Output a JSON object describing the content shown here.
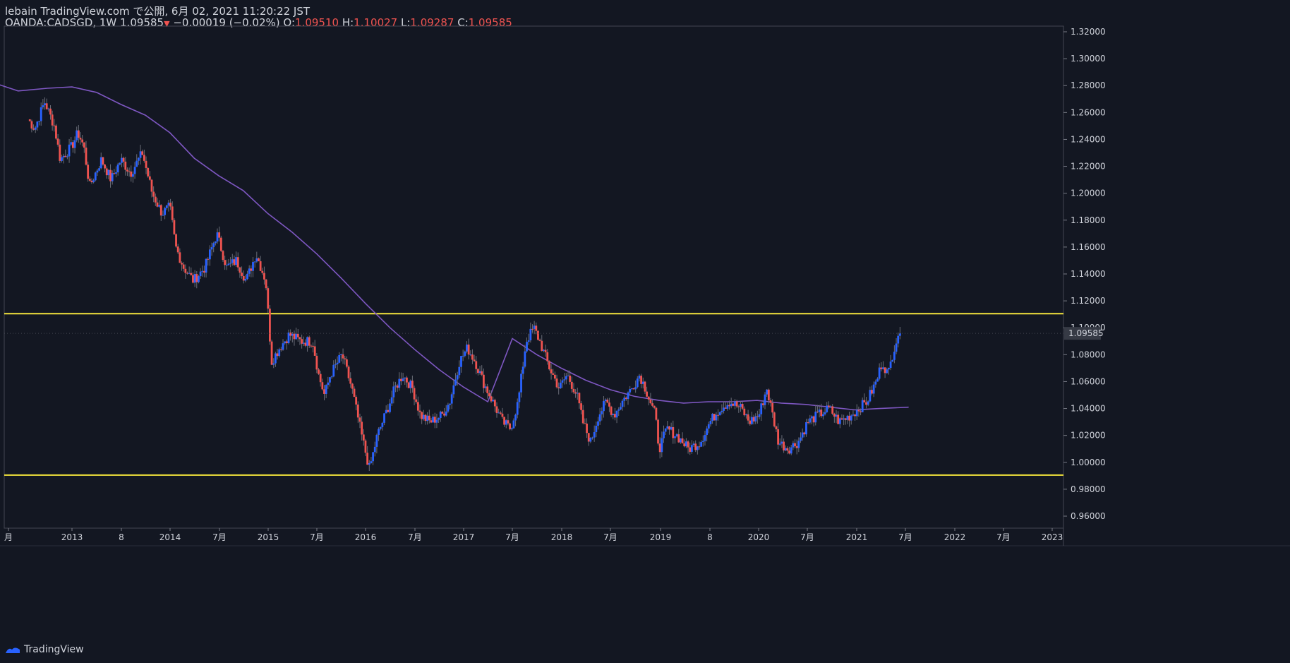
{
  "header": {
    "publisher": "lebain TradingView.com で公開, 6月 02, 2021 11:20:22 JST",
    "symbol": "OANDA:CADSGD, 1W",
    "last": "1.09585",
    "change": "−0.00019 (−0.02%)",
    "o_label": "O:",
    "o_value": "1.09510",
    "h_label": "H:",
    "h_value": "1.10027",
    "l_label": "L:",
    "l_value": "1.09287",
    "c_label": "C:",
    "c_value": "1.09585"
  },
  "footer": {
    "brand": "TradingView"
  },
  "colors": {
    "background": "#131722",
    "up": "#2962ff",
    "down": "#ef5350",
    "ma": "#7e57c2",
    "level": "#f5e63c",
    "grid": "#2a2e39"
  },
  "chart_data": {
    "type": "candlestick",
    "timeframe": "1W",
    "x_tick_labels": [
      "月",
      "2013",
      "8",
      "2014",
      "7月",
      "2015",
      "7月",
      "2016",
      "7月",
      "2017",
      "7月",
      "2018",
      "7月",
      "2019",
      "8",
      "2020",
      "7月",
      "2021",
      "7月",
      "2022",
      "7月",
      "2023"
    ],
    "y_tick_labels": [
      "1.32000",
      "1.30000",
      "1.28000",
      "1.26000",
      "1.24000",
      "1.22000",
      "1.20000",
      "1.18000",
      "1.16000",
      "1.14000",
      "1.12000",
      "1.10000",
      "1.08000",
      "1.06000",
      "1.04000",
      "1.02000",
      "1.00000",
      "0.98000",
      "0.96000"
    ],
    "ylim": [
      0.95,
      1.325
    ],
    "last_price_label": "1.09585",
    "last_price": 1.09585,
    "horizontal_levels": [
      1.1105,
      0.9905
    ],
    "close_path": [
      [
        2012.55,
        1.255
      ],
      [
        2012.62,
        1.248
      ],
      [
        2012.72,
        1.268
      ],
      [
        2012.82,
        1.25
      ],
      [
        2012.88,
        1.225
      ],
      [
        2013.0,
        1.235
      ],
      [
        2013.06,
        1.245
      ],
      [
        2013.12,
        1.235
      ],
      [
        2013.18,
        1.205
      ],
      [
        2013.3,
        1.225
      ],
      [
        2013.4,
        1.21
      ],
      [
        2013.5,
        1.225
      ],
      [
        2013.6,
        1.215
      ],
      [
        2013.72,
        1.23
      ],
      [
        2013.82,
        1.2
      ],
      [
        2013.92,
        1.185
      ],
      [
        2014.0,
        1.19
      ],
      [
        2014.06,
        1.16
      ],
      [
        2014.14,
        1.145
      ],
      [
        2014.24,
        1.135
      ],
      [
        2014.36,
        1.145
      ],
      [
        2014.48,
        1.17
      ],
      [
        2014.58,
        1.145
      ],
      [
        2014.68,
        1.15
      ],
      [
        2014.78,
        1.135
      ],
      [
        2014.88,
        1.155
      ],
      [
        2014.98,
        1.135
      ],
      [
        2015.04,
        1.075
      ],
      [
        2015.12,
        1.085
      ],
      [
        2015.22,
        1.095
      ],
      [
        2015.34,
        1.09
      ],
      [
        2015.46,
        1.09
      ],
      [
        2015.52,
        1.065
      ],
      [
        2015.58,
        1.05
      ],
      [
        2015.64,
        1.065
      ],
      [
        2015.76,
        1.08
      ],
      [
        2015.86,
        1.055
      ],
      [
        2015.96,
        1.02
      ],
      [
        2016.04,
        0.995
      ],
      [
        2016.12,
        1.02
      ],
      [
        2016.2,
        1.035
      ],
      [
        2016.3,
        1.055
      ],
      [
        2016.38,
        1.065
      ],
      [
        2016.48,
        1.055
      ],
      [
        2016.56,
        1.035
      ],
      [
        2016.66,
        1.03
      ],
      [
        2016.78,
        1.035
      ],
      [
        2016.86,
        1.045
      ],
      [
        2016.96,
        1.075
      ],
      [
        2017.04,
        1.085
      ],
      [
        2017.12,
        1.075
      ],
      [
        2017.2,
        1.06
      ],
      [
        2017.3,
        1.045
      ],
      [
        2017.4,
        1.03
      ],
      [
        2017.48,
        1.025
      ],
      [
        2017.56,
        1.045
      ],
      [
        2017.64,
        1.09
      ],
      [
        2017.72,
        1.1
      ],
      [
        2017.78,
        1.09
      ],
      [
        2017.88,
        1.07
      ],
      [
        2017.98,
        1.055
      ],
      [
        2018.06,
        1.065
      ],
      [
        2018.16,
        1.05
      ],
      [
        2018.22,
        1.03
      ],
      [
        2018.3,
        1.015
      ],
      [
        2018.38,
        1.035
      ],
      [
        2018.46,
        1.045
      ],
      [
        2018.54,
        1.035
      ],
      [
        2018.62,
        1.045
      ],
      [
        2018.72,
        1.055
      ],
      [
        2018.8,
        1.065
      ],
      [
        2018.86,
        1.055
      ],
      [
        2018.96,
        1.035
      ],
      [
        2019.0,
        1.01
      ],
      [
        2019.08,
        1.025
      ],
      [
        2019.18,
        1.02
      ],
      [
        2019.3,
        1.01
      ],
      [
        2019.42,
        1.015
      ],
      [
        2019.52,
        1.03
      ],
      [
        2019.62,
        1.04
      ],
      [
        2019.72,
        1.045
      ],
      [
        2019.84,
        1.04
      ],
      [
        2019.92,
        1.03
      ],
      [
        2020.02,
        1.035
      ],
      [
        2020.1,
        1.055
      ],
      [
        2020.16,
        1.035
      ],
      [
        2020.22,
        1.015
      ],
      [
        2020.32,
        1.01
      ],
      [
        2020.42,
        1.015
      ],
      [
        2020.52,
        1.03
      ],
      [
        2020.62,
        1.035
      ],
      [
        2020.74,
        1.04
      ],
      [
        2020.84,
        1.03
      ],
      [
        2020.96,
        1.035
      ],
      [
        2021.04,
        1.04
      ],
      [
        2021.12,
        1.045
      ],
      [
        2021.22,
        1.06
      ],
      [
        2021.28,
        1.075
      ],
      [
        2021.34,
        1.065
      ],
      [
        2021.4,
        1.085
      ],
      [
        2021.46,
        1.1
      ],
      [
        2021.48,
        1.09585
      ]
    ],
    "ma_path": [
      [
        2012.0,
        1.287
      ],
      [
        2012.2,
        1.282
      ],
      [
        2012.45,
        1.276
      ],
      [
        2012.75,
        1.278
      ],
      [
        2013.0,
        1.279
      ],
      [
        2013.25,
        1.275
      ],
      [
        2013.5,
        1.266
      ],
      [
        2013.75,
        1.258
      ],
      [
        2014.0,
        1.245
      ],
      [
        2014.25,
        1.226
      ],
      [
        2014.5,
        1.213
      ],
      [
        2014.75,
        1.202
      ],
      [
        2015.0,
        1.185
      ],
      [
        2015.25,
        1.171
      ],
      [
        2015.5,
        1.155
      ],
      [
        2015.75,
        1.137
      ],
      [
        2016.0,
        1.118
      ],
      [
        2016.25,
        1.1
      ],
      [
        2016.5,
        1.084
      ],
      [
        2016.75,
        1.069
      ],
      [
        2017.0,
        1.056
      ],
      [
        2017.25,
        1.045
      ],
      [
        2017.5,
        1.092
      ],
      [
        2017.75,
        1.08
      ],
      [
        2018.0,
        1.07
      ],
      [
        2018.25,
        1.061
      ],
      [
        2018.5,
        1.054
      ],
      [
        2018.75,
        1.049
      ],
      [
        2019.0,
        1.046
      ],
      [
        2019.25,
        1.044
      ],
      [
        2019.5,
        1.045
      ],
      [
        2019.75,
        1.045
      ],
      [
        2020.0,
        1.046
      ],
      [
        2020.25,
        1.044
      ],
      [
        2020.5,
        1.043
      ],
      [
        2020.75,
        1.041
      ],
      [
        2021.0,
        1.039
      ],
      [
        2021.25,
        1.04
      ],
      [
        2021.55,
        1.041
      ]
    ]
  }
}
